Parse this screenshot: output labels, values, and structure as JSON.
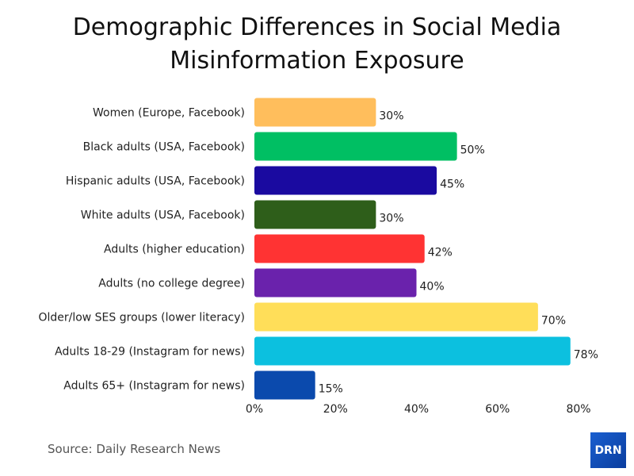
{
  "chart_data": {
    "type": "bar",
    "orientation": "horizontal",
    "title": "Demographic Differences in Social Media Misinformation Exposure",
    "title_lines": [
      "Demographic Differences in Social Media",
      "Misinformation Exposure"
    ],
    "categories": [
      "Women (Europe, Facebook)",
      "Black adults (USA, Facebook)",
      "Hispanic adults (USA, Facebook)",
      "White adults (USA, Facebook)",
      "Adults (higher education)",
      "Adults (no college degree)",
      "Older/low SES groups (lower literacy)",
      "Adults 18-29 (Instagram for news)",
      "Adults 65+ (Instagram for news)"
    ],
    "values": [
      30,
      50,
      45,
      30,
      42,
      40,
      70,
      78,
      15
    ],
    "data_labels": [
      "30%",
      "50%",
      "45%",
      "30%",
      "42%",
      "40%",
      "70%",
      "78%",
      "15%"
    ],
    "colors": [
      "#FFBE5C",
      "#00BF63",
      "#1A0AA0",
      "#2E5E1A",
      "#FF3333",
      "#6A22AC",
      "#FFDE59",
      "#0CC0DF",
      "#0B4AAD"
    ],
    "xlim": [
      0,
      80
    ],
    "xticks": [
      0,
      20,
      40,
      60,
      80
    ],
    "xtick_labels": [
      "0%",
      "20%",
      "40%",
      "60%",
      "80%"
    ],
    "xlabel": "",
    "ylabel": "",
    "grid": false
  },
  "source": "Source: Daily Research News",
  "logo_text": "DRN"
}
